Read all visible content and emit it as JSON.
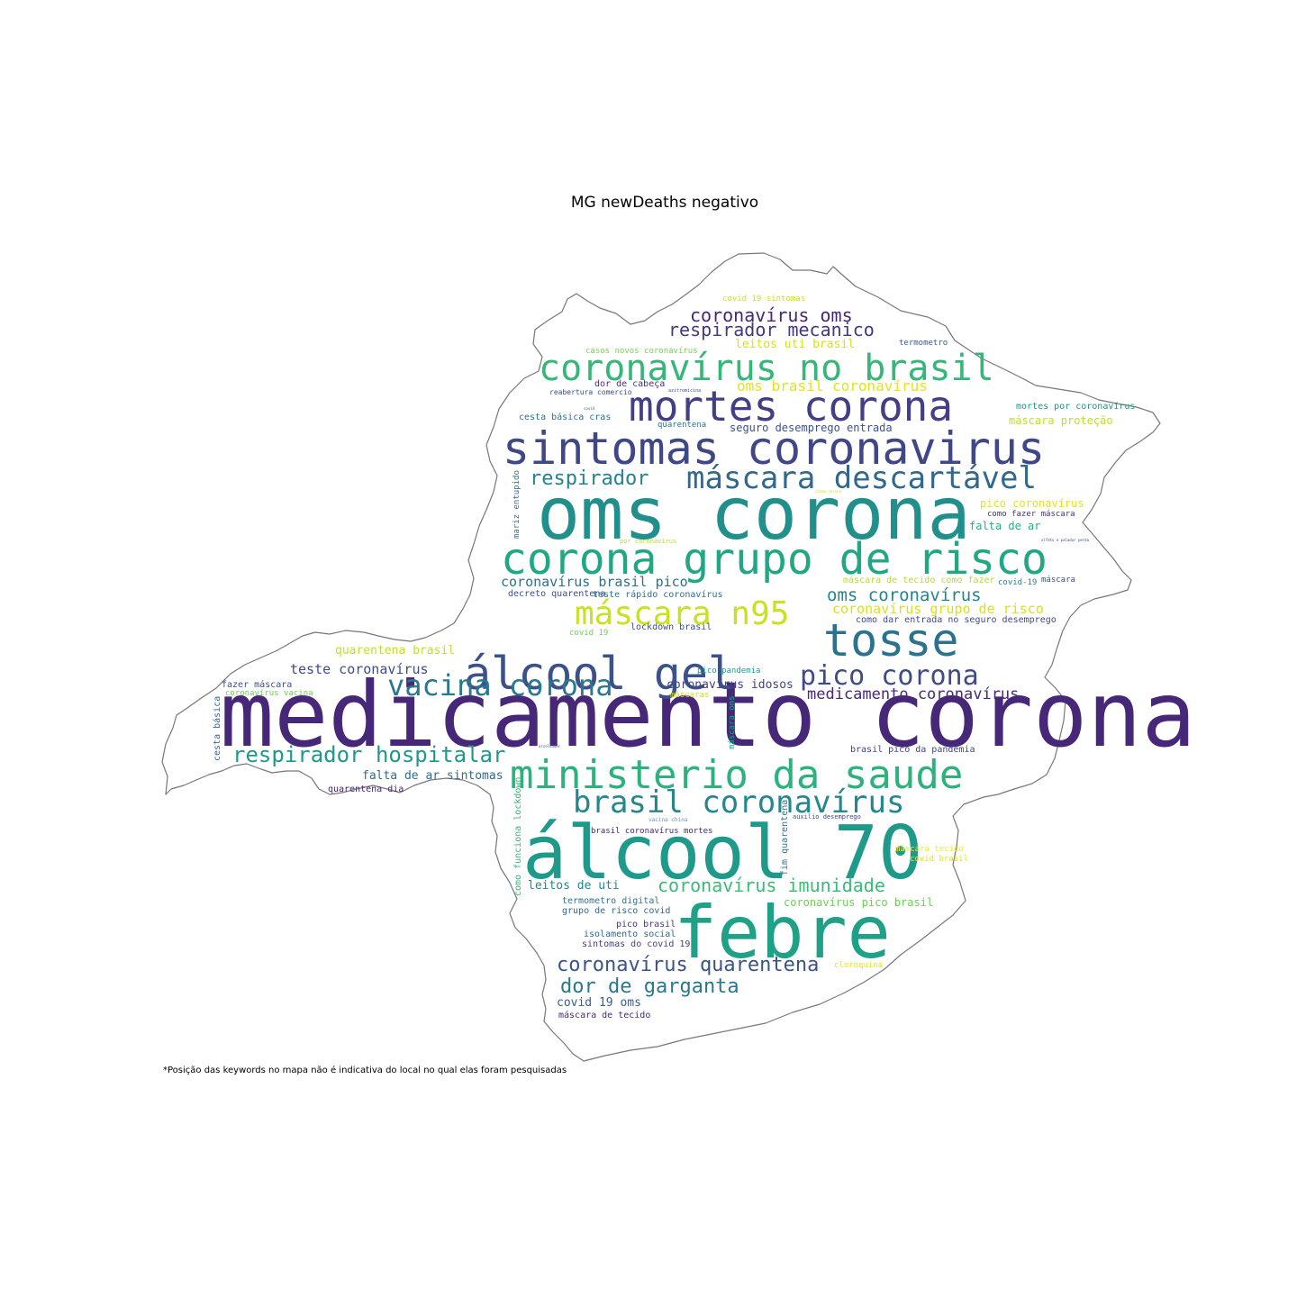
{
  "title": "MG newDeaths negativo",
  "footnote": "*Posição das keywords no mapa não é indicativa do local no qual elas foram pesquisadas",
  "palette": {
    "dark_purple": "#472878",
    "indigo": "#3f4788",
    "blue": "#355e8d",
    "teal_blue": "#2c728e",
    "teal": "#21908d",
    "teal_green": "#1fa188",
    "green": "#35b779",
    "light_green": "#6cce59",
    "yellow_green": "#b5de2b",
    "yellow": "#e4e419",
    "outline": "#777777"
  },
  "words": [
    {
      "text": "medicamento corona",
      "c": "#472878"
    },
    {
      "text": "oms corona",
      "c": "#21908d"
    },
    {
      "text": "álcool 70",
      "c": "#1f9a8a"
    },
    {
      "text": "febre",
      "c": "#1fa188"
    },
    {
      "text": "sintomas coronavirus",
      "c": "#3f4788"
    },
    {
      "text": "corona grupo de risco",
      "c": "#22a785"
    },
    {
      "text": "ministerio da saude",
      "c": "#2db27d"
    },
    {
      "text": "mortes corona",
      "c": "#433e85"
    },
    {
      "text": "coronavírus no brasil",
      "c": "#35b779"
    },
    {
      "text": "álcool gel",
      "c": "#3b518b"
    },
    {
      "text": "tosse",
      "c": "#2c728e"
    },
    {
      "text": "máscara n95",
      "c": "#cae11f"
    },
    {
      "text": "máscara descartável",
      "c": "#31688e"
    },
    {
      "text": "brasil coronavírus",
      "c": "#24868e"
    },
    {
      "text": "vacina corona",
      "c": "#2a788e"
    },
    {
      "text": "pico corona",
      "c": "#3e4a89"
    },
    {
      "text": "respirador hospitalar",
      "c": "#1f988b"
    },
    {
      "text": "coronavírus quarentena",
      "c": "#3b528b"
    },
    {
      "text": "dor de garganta",
      "c": "#2a788e"
    },
    {
      "text": "coronavírus imunidade",
      "c": "#3bbb75"
    },
    {
      "text": "respirador",
      "c": "#26828e"
    },
    {
      "text": "coronavírus oms",
      "c": "#482475"
    },
    {
      "text": "respirador mecanico",
      "c": "#453781"
    },
    {
      "text": "oms coronavírus",
      "c": "#25848e"
    },
    {
      "text": "medicamento coronavírus",
      "c": "#482878"
    },
    {
      "text": "oms brasil coronavírus",
      "c": "#e2e418"
    },
    {
      "text": "coronavírus grupo de risco",
      "c": "#d8e219"
    },
    {
      "text": "coronavírus brasil pico",
      "c": "#2c718e"
    },
    {
      "text": "teste coronavírus",
      "c": "#3e4c8a"
    },
    {
      "text": "quarentena brasil",
      "c": "#c2df23"
    },
    {
      "text": "falta de ar sintomas",
      "c": "#306a8e"
    },
    {
      "text": "coronavírus idosos",
      "c": "#414487"
    },
    {
      "text": "leitos de uti",
      "c": "#24878e"
    },
    {
      "text": "covid 19 oms",
      "c": "#355f8d"
    },
    {
      "text": "leitos uti brasil",
      "c": "#d5e21a"
    },
    {
      "text": "seguro desemprego entrada",
      "c": "#3b518b"
    },
    {
      "text": "máscara proteção",
      "c": "#c0df25"
    },
    {
      "text": "falta de ar",
      "c": "#28ae80"
    },
    {
      "text": "pico coronavírus",
      "c": "#e5e419"
    },
    {
      "text": "coronavírus pico brasil",
      "c": "#6ece58"
    },
    {
      "text": "decreto quarentena",
      "c": "#3d4e8a"
    },
    {
      "text": "teste rápido coronavírus",
      "c": "#2c728e"
    },
    {
      "text": "lockdown brasil",
      "c": "#3b528b"
    },
    {
      "text": "termometro digital",
      "c": "#2c738e"
    },
    {
      "text": "grupo de risco covid",
      "c": "#31688e"
    },
    {
      "text": "pico brasil",
      "c": "#453781"
    },
    {
      "text": "isolamento social",
      "c": "#2f6c8e"
    },
    {
      "text": "sintomas do covid 19",
      "c": "#414487"
    },
    {
      "text": "máscara de tecido",
      "c": "#482878"
    },
    {
      "text": "como dar entrada no seguro desemprego",
      "c": "#3e4a89"
    },
    {
      "text": "máscara de tecido como fazer",
      "c": "#b5de2b"
    },
    {
      "text": "brasil pico da pandemia",
      "c": "#404588"
    },
    {
      "text": "quarentena dia",
      "c": "#482173"
    },
    {
      "text": "fazer máscara",
      "c": "#3b528b"
    },
    {
      "text": "coronavírus vacina",
      "c": "#6ece58"
    },
    {
      "text": "mortes por coronavírus",
      "c": "#1f968b"
    },
    {
      "text": "covid 19 sintomas",
      "c": "#d0e11c"
    },
    {
      "text": "casos novos coronavírus",
      "c": "#7ad151"
    },
    {
      "text": "dor de cabeça",
      "c": "#472d7b"
    },
    {
      "text": "reabertura comercio",
      "c": "#3e4a89"
    },
    {
      "text": "cesta básica cras",
      "c": "#2c728e"
    },
    {
      "text": "quarentena",
      "c": "#2b758e"
    },
    {
      "text": "termometro",
      "c": "#38588c"
    },
    {
      "text": "como fazer máscara",
      "c": "#46327e"
    },
    {
      "text": "covid-19",
      "c": "#26828e"
    },
    {
      "text": "máscara",
      "c": "#3b528b"
    },
    {
      "text": "covid 19",
      "c": "#6ece58"
    },
    {
      "text": "pico pandemia",
      "c": "#1fa088"
    },
    {
      "text": "máscaras",
      "c": "#d2e21b"
    },
    {
      "text": "brasil coronavírus mortes",
      "c": "#482576"
    },
    {
      "text": "máscara tecido",
      "c": "#fde725"
    },
    {
      "text": "covid brasil",
      "c": "#e5e419"
    },
    {
      "text": "cloroquina",
      "c": "#e7e419"
    },
    {
      "text": "auxilio desemprego",
      "c": "#3e4a89"
    },
    {
      "text": "vacina china",
      "c": "#6d8fa8"
    },
    {
      "text": "cesta básica",
      "c": "#31688e"
    },
    {
      "text": "mariz entupido",
      "c": "#2c728e"
    },
    {
      "text": "como funciona lockdown",
      "c": "#35b779"
    },
    {
      "text": "fim quarentena",
      "c": "#2c728e"
    },
    {
      "text": "máscara oms",
      "c": "#1fa188"
    },
    {
      "text": "azitromicina",
      "c": "#3b528b"
    },
    {
      "text": "covid",
      "c": "#3b528b"
    },
    {
      "text": "por coronavírus",
      "c": "#b5de2b"
    },
    {
      "text": "olfato e paladar perda",
      "c": "#3e4a89"
    },
    {
      "text": "arcoleader",
      "c": "#3e4a89"
    },
    {
      "text": "chama corona",
      "c": "#d2e21b"
    }
  ]
}
